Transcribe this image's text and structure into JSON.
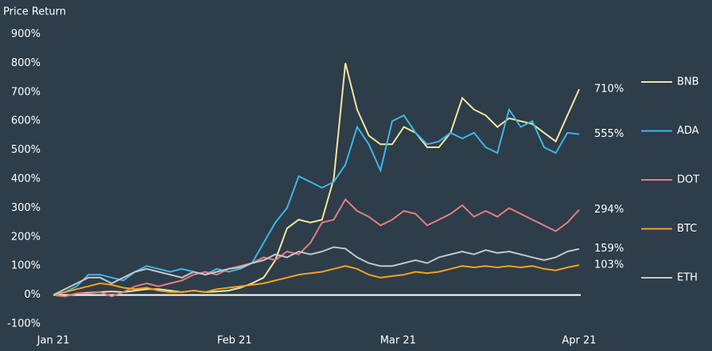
{
  "chart_data": {
    "type": "line",
    "title": "Price Return",
    "x": [
      0,
      2,
      4,
      6,
      8,
      10,
      12,
      14,
      16,
      18,
      20,
      22,
      24,
      26,
      28,
      30,
      32,
      34,
      36,
      38,
      40,
      42,
      44,
      46,
      48,
      50,
      52,
      54,
      56,
      58,
      60,
      62,
      64,
      66,
      68,
      70,
      72,
      74,
      76,
      78,
      80,
      82,
      84,
      86,
      88,
      90
    ],
    "xlim": [
      0,
      90
    ],
    "xticks": [
      {
        "value": 0,
        "label": "Jan 21"
      },
      {
        "value": 31,
        "label": "Feb 21"
      },
      {
        "value": 59,
        "label": "Mar 21"
      },
      {
        "value": 90,
        "label": "Apr 21"
      }
    ],
    "ylim": [
      -100,
      900
    ],
    "yticks": [
      {
        "value": -100,
        "label": "-100%"
      },
      {
        "value": 0,
        "label": "0%"
      },
      {
        "value": 100,
        "label": "100%"
      },
      {
        "value": 200,
        "label": "200%"
      },
      {
        "value": 300,
        "label": "300%"
      },
      {
        "value": 400,
        "label": "400%"
      },
      {
        "value": 500,
        "label": "500%"
      },
      {
        "value": 600,
        "label": "600%"
      },
      {
        "value": 700,
        "label": "700%"
      },
      {
        "value": 800,
        "label": "800%"
      },
      {
        "value": 900,
        "label": "900%"
      }
    ],
    "legend": "right",
    "series": [
      {
        "name": "BNB",
        "color": "#f3e6a2",
        "values": [
          0,
          -5,
          5,
          8,
          10,
          12,
          10,
          15,
          20,
          20,
          15,
          10,
          15,
          10,
          12,
          15,
          25,
          40,
          60,
          120,
          230,
          260,
          250,
          260,
          400,
          800,
          640,
          550,
          520,
          520,
          580,
          560,
          510,
          510,
          560,
          680,
          640,
          620,
          580,
          610,
          600,
          590,
          560,
          530,
          620,
          710
        ],
        "value_labels": [
          null,
          null,
          null,
          null,
          null,
          null,
          null,
          null,
          null,
          null,
          null,
          null,
          null,
          null,
          null,
          null,
          null,
          null,
          null,
          null,
          null,
          null,
          null,
          null,
          null,
          null,
          null,
          null,
          null,
          null,
          null,
          null,
          null,
          null,
          null,
          null,
          null,
          null,
          null,
          null,
          null,
          null,
          null,
          null,
          null,
          "710%"
        ]
      },
      {
        "name": "ADA",
        "color": "#3fb5e9",
        "values": [
          0,
          10,
          30,
          70,
          70,
          60,
          50,
          80,
          100,
          90,
          80,
          90,
          80,
          70,
          90,
          80,
          90,
          110,
          180,
          250,
          300,
          410,
          390,
          370,
          390,
          450,
          580,
          520,
          430,
          600,
          620,
          560,
          520,
          530,
          560,
          540,
          560,
          510,
          490,
          640,
          580,
          600,
          510,
          490,
          560,
          555
        ],
        "value_labels": [
          null,
          null,
          null,
          null,
          null,
          null,
          null,
          null,
          null,
          null,
          null,
          null,
          null,
          null,
          null,
          null,
          null,
          null,
          null,
          null,
          null,
          null,
          null,
          null,
          null,
          null,
          null,
          null,
          null,
          null,
          null,
          null,
          null,
          null,
          null,
          null,
          null,
          null,
          null,
          null,
          null,
          null,
          null,
          null,
          null,
          "555%"
        ]
      },
      {
        "name": "DOT",
        "color": "#e27d86",
        "values": [
          0,
          -5,
          5,
          5,
          10,
          -5,
          10,
          30,
          40,
          30,
          40,
          50,
          70,
          80,
          70,
          90,
          100,
          110,
          130,
          120,
          150,
          140,
          180,
          250,
          260,
          330,
          290,
          270,
          240,
          260,
          290,
          280,
          240,
          260,
          280,
          310,
          270,
          290,
          270,
          300,
          280,
          260,
          240,
          220,
          250,
          294
        ],
        "value_labels": [
          null,
          null,
          null,
          null,
          null,
          null,
          null,
          null,
          null,
          null,
          null,
          null,
          null,
          null,
          null,
          null,
          null,
          null,
          null,
          null,
          null,
          null,
          null,
          null,
          null,
          null,
          null,
          null,
          null,
          null,
          null,
          null,
          null,
          null,
          null,
          null,
          null,
          null,
          null,
          null,
          null,
          null,
          null,
          null,
          null,
          "294%"
        ]
      },
      {
        "name": "BTC",
        "color": "#f2a11f",
        "values": [
          0,
          10,
          20,
          30,
          40,
          35,
          25,
          20,
          25,
          15,
          10,
          10,
          15,
          10,
          20,
          25,
          30,
          35,
          40,
          50,
          60,
          70,
          75,
          80,
          90,
          100,
          90,
          70,
          60,
          65,
          70,
          80,
          75,
          80,
          90,
          100,
          95,
          100,
          95,
          100,
          95,
          100,
          90,
          85,
          95,
          103
        ],
        "value_labels": [
          null,
          null,
          null,
          null,
          null,
          null,
          null,
          null,
          null,
          null,
          null,
          null,
          null,
          null,
          null,
          null,
          null,
          null,
          null,
          null,
          null,
          null,
          null,
          null,
          null,
          null,
          null,
          null,
          null,
          null,
          null,
          null,
          null,
          null,
          null,
          null,
          null,
          null,
          null,
          null,
          null,
          null,
          null,
          null,
          null,
          "103%"
        ]
      },
      {
        "name": "ETH",
        "color": "#c3c6ca",
        "values": [
          0,
          20,
          40,
          60,
          60,
          40,
          60,
          80,
          90,
          80,
          70,
          60,
          80,
          70,
          80,
          90,
          95,
          110,
          120,
          140,
          130,
          150,
          140,
          150,
          165,
          160,
          130,
          110,
          100,
          100,
          110,
          120,
          110,
          130,
          140,
          150,
          140,
          155,
          145,
          150,
          140,
          130,
          120,
          130,
          150,
          159
        ],
        "value_labels": [
          null,
          null,
          null,
          null,
          null,
          null,
          null,
          null,
          null,
          null,
          null,
          null,
          null,
          null,
          null,
          null,
          null,
          null,
          null,
          null,
          null,
          null,
          null,
          null,
          null,
          null,
          null,
          null,
          null,
          null,
          null,
          null,
          null,
          null,
          null,
          null,
          null,
          null,
          null,
          null,
          null,
          null,
          null,
          null,
          null,
          "159%"
        ]
      }
    ]
  }
}
